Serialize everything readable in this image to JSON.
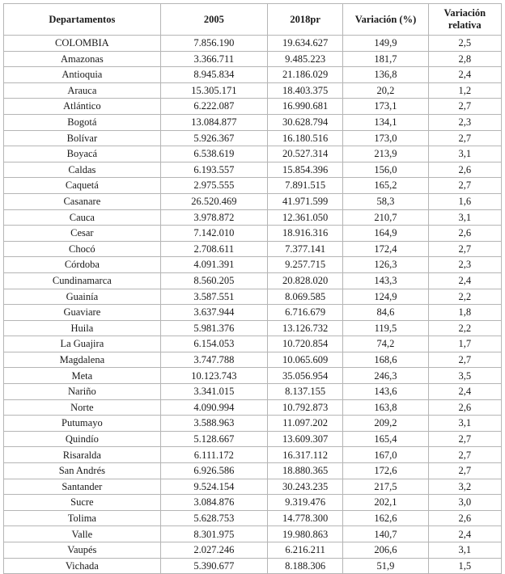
{
  "chart_data": {
    "type": "table",
    "title": "",
    "columns": [
      "Departamentos",
      "2005",
      "2018pr",
      "Variación (%)",
      "Variación relativa"
    ],
    "rows": [
      [
        "COLOMBIA",
        "7.856.190",
        "19.634.627",
        "149,9",
        "2,5"
      ],
      [
        "Amazonas",
        "3.366.711",
        "9.485.223",
        "181,7",
        "2,8"
      ],
      [
        "Antioquia",
        "8.945.834",
        "21.186.029",
        "136,8",
        "2,4"
      ],
      [
        "Arauca",
        "15.305.171",
        "18.403.375",
        "20,2",
        "1,2"
      ],
      [
        "Atlántico",
        "6.222.087",
        "16.990.681",
        "173,1",
        "2,7"
      ],
      [
        "Bogotá",
        "13.084.877",
        "30.628.794",
        "134,1",
        "2,3"
      ],
      [
        "Bolívar",
        "5.926.367",
        "16.180.516",
        "173,0",
        "2,7"
      ],
      [
        "Boyacá",
        "6.538.619",
        "20.527.314",
        "213,9",
        "3,1"
      ],
      [
        "Caldas",
        "6.193.557",
        "15.854.396",
        "156,0",
        "2,6"
      ],
      [
        "Caquetá",
        "2.975.555",
        "7.891.515",
        "165,2",
        "2,7"
      ],
      [
        "Casanare",
        "26.520.469",
        "41.971.599",
        "58,3",
        "1,6"
      ],
      [
        "Cauca",
        "3.978.872",
        "12.361.050",
        "210,7",
        "3,1"
      ],
      [
        "Cesar",
        "7.142.010",
        "18.916.316",
        "164,9",
        "2,6"
      ],
      [
        "Chocó",
        "2.708.611",
        "7.377.141",
        "172,4",
        "2,7"
      ],
      [
        "Córdoba",
        "4.091.391",
        "9.257.715",
        "126,3",
        "2,3"
      ],
      [
        "Cundinamarca",
        "8.560.205",
        "20.828.020",
        "143,3",
        "2,4"
      ],
      [
        "Guainía",
        "3.587.551",
        "8.069.585",
        "124,9",
        "2,2"
      ],
      [
        "Guaviare",
        "3.637.944",
        "6.716.679",
        "84,6",
        "1,8"
      ],
      [
        "Huila",
        "5.981.376",
        "13.126.732",
        "119,5",
        "2,2"
      ],
      [
        "La Guajira",
        "6.154.053",
        "10.720.854",
        "74,2",
        "1,7"
      ],
      [
        "Magdalena",
        "3.747.788",
        "10.065.609",
        "168,6",
        "2,7"
      ],
      [
        "Meta",
        "10.123.743",
        "35.056.954",
        "246,3",
        "3,5"
      ],
      [
        "Nariño",
        "3.341.015",
        "8.137.155",
        "143,6",
        "2,4"
      ],
      [
        "Norte",
        "4.090.994",
        "10.792.873",
        "163,8",
        "2,6"
      ],
      [
        "Putumayo",
        "3.588.963",
        "11.097.202",
        "209,2",
        "3,1"
      ],
      [
        "Quindío",
        "5.128.667",
        "13.609.307",
        "165,4",
        "2,7"
      ],
      [
        "Risaralda",
        "6.111.172",
        "16.317.112",
        "167,0",
        "2,7"
      ],
      [
        "San Andrés",
        "6.926.586",
        "18.880.365",
        "172,6",
        "2,7"
      ],
      [
        "Santander",
        "9.524.154",
        "30.243.235",
        "217,5",
        "3,2"
      ],
      [
        "Sucre",
        "3.084.876",
        "9.319.476",
        "202,1",
        "3,0"
      ],
      [
        "Tolima",
        "5.628.753",
        "14.778.300",
        "162,6",
        "2,6"
      ],
      [
        "Valle",
        "8.301.975",
        "19.980.863",
        "140,7",
        "2,4"
      ],
      [
        "Vaupés",
        "2.027.246",
        "6.216.211",
        "206,6",
        "3,1"
      ],
      [
        "Vichada",
        "5.390.677",
        "8.188.306",
        "51,9",
        "1,5"
      ]
    ]
  }
}
